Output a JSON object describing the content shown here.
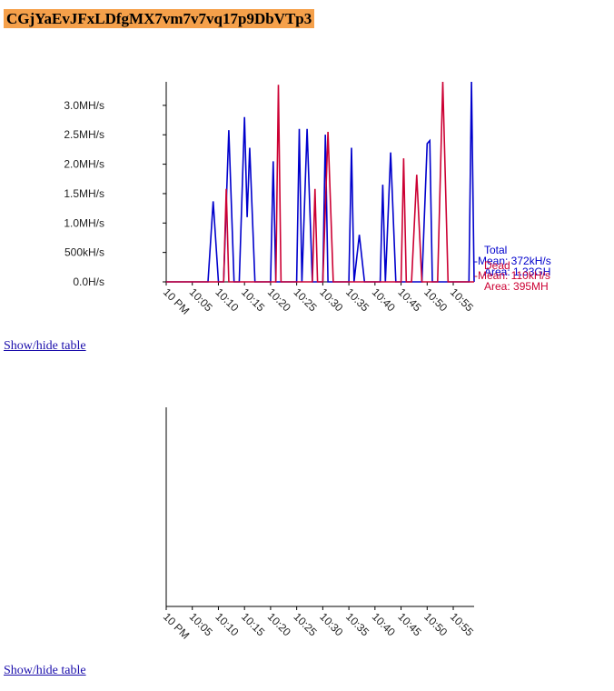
{
  "page": {
    "title": "CGjYaEvJFxLDfgMX7vm7v7vq17p9DbVTp3"
  },
  "links": {
    "toggle_table_1": "Show/hide table",
    "toggle_table_2": "Show/hide table"
  },
  "colors": {
    "title_bg": "#f5a04a",
    "total": "#0000cc",
    "dead": "#cc0033",
    "link": "#1a0dab"
  },
  "chart_data": [
    {
      "type": "line",
      "ylim": [
        0,
        3.4
      ],
      "yticks": [
        {
          "v": 0,
          "label": "0.0H/s"
        },
        {
          "v": 0.5,
          "label": "500kH/s"
        },
        {
          "v": 1.0,
          "label": "1.0MH/s"
        },
        {
          "v": 1.5,
          "label": "1.5MH/s"
        },
        {
          "v": 2.0,
          "label": "2.0MH/s"
        },
        {
          "v": 2.5,
          "label": "2.5MH/s"
        },
        {
          "v": 3.0,
          "label": "3.0MH/s"
        }
      ],
      "xlim": [
        0,
        59
      ],
      "xticks": [
        {
          "v": 0,
          "label": "10 PM"
        },
        {
          "v": 5,
          "label": "10:05"
        },
        {
          "v": 10,
          "label": "10:10"
        },
        {
          "v": 15,
          "label": "10:15"
        },
        {
          "v": 20,
          "label": "10:20"
        },
        {
          "v": 25,
          "label": "10:25"
        },
        {
          "v": 30,
          "label": "10:30"
        },
        {
          "v": 35,
          "label": "10:35"
        },
        {
          "v": 40,
          "label": "10:40"
        },
        {
          "v": 45,
          "label": "10:45"
        },
        {
          "v": 50,
          "label": "10:50"
        },
        {
          "v": 55,
          "label": "10:55"
        }
      ],
      "legend_position": "right",
      "series": [
        {
          "name": "Total",
          "color": "#0000cc",
          "legend_lines": [
            "-Mean: 372kH/s",
            "Area: 1.33GH"
          ],
          "points": [
            [
              0,
              0
            ],
            [
              8,
              0
            ],
            [
              9,
              1.37
            ],
            [
              10,
              0
            ],
            [
              11,
              0
            ],
            [
              12,
              2.58
            ],
            [
              13,
              0
            ],
            [
              14,
              0
            ],
            [
              15,
              2.8
            ],
            [
              15.5,
              1.1
            ],
            [
              16,
              2.28
            ],
            [
              17,
              0
            ],
            [
              20,
              0
            ],
            [
              20.5,
              2.05
            ],
            [
              21,
              0
            ],
            [
              25,
              0
            ],
            [
              25.5,
              2.6
            ],
            [
              26,
              0
            ],
            [
              27,
              2.6
            ],
            [
              28,
              0
            ],
            [
              30,
              0
            ],
            [
              30.5,
              2.5
            ],
            [
              31,
              0
            ],
            [
              35,
              0
            ],
            [
              35.5,
              2.28
            ],
            [
              36,
              0
            ],
            [
              37,
              0.8
            ],
            [
              38,
              0
            ],
            [
              41,
              0
            ],
            [
              41.5,
              1.65
            ],
            [
              42,
              0
            ],
            [
              43,
              2.2
            ],
            [
              44,
              0
            ],
            [
              49,
              0
            ],
            [
              50,
              2.35
            ],
            [
              50.5,
              2.4
            ],
            [
              51,
              0
            ],
            [
              58,
              0
            ],
            [
              58.5,
              3.4
            ],
            [
              59,
              0
            ]
          ]
        },
        {
          "name": "Dead",
          "color": "#cc0033",
          "legend_lines": [
            "-Mean: 110kH/s",
            "Area: 395MH"
          ],
          "points": [
            [
              0,
              0
            ],
            [
              11,
              0
            ],
            [
              11.5,
              1.58
            ],
            [
              12,
              0
            ],
            [
              21,
              0
            ],
            [
              21.5,
              3.35
            ],
            [
              22,
              0
            ],
            [
              28,
              0
            ],
            [
              28.5,
              1.58
            ],
            [
              29,
              0
            ],
            [
              30,
              0
            ],
            [
              31,
              2.55
            ],
            [
              32,
              0
            ],
            [
              45,
              0
            ],
            [
              45.5,
              2.1
            ],
            [
              46,
              0
            ],
            [
              47,
              0
            ],
            [
              48,
              1.82
            ],
            [
              49,
              0
            ],
            [
              52,
              0
            ],
            [
              53,
              3.4
            ],
            [
              54,
              0
            ],
            [
              59,
              0
            ]
          ]
        }
      ]
    },
    {
      "type": "line",
      "xlim": [
        0,
        59
      ],
      "xticks": [
        {
          "v": 0,
          "label": "10 PM"
        },
        {
          "v": 5,
          "label": "10:05"
        },
        {
          "v": 10,
          "label": "10:10"
        },
        {
          "v": 15,
          "label": "10:15"
        },
        {
          "v": 20,
          "label": "10:20"
        },
        {
          "v": 25,
          "label": "10:25"
        },
        {
          "v": 30,
          "label": "10:30"
        },
        {
          "v": 35,
          "label": "10:35"
        },
        {
          "v": 40,
          "label": "10:40"
        },
        {
          "v": 45,
          "label": "10:45"
        },
        {
          "v": 50,
          "label": "10:50"
        },
        {
          "v": 55,
          "label": "10:55"
        }
      ],
      "yticks": [],
      "series": []
    }
  ]
}
